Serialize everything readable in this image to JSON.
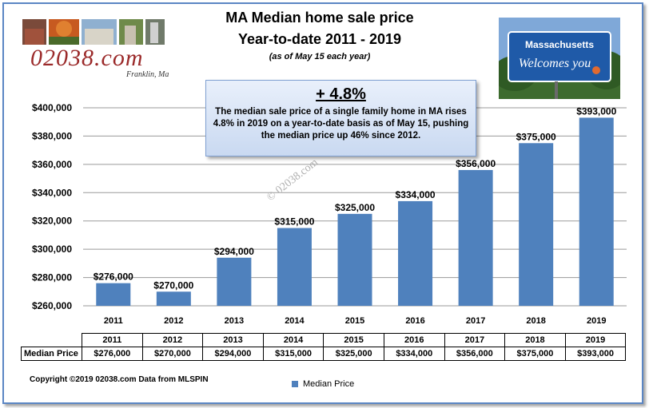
{
  "header": {
    "title_line1": "MA Median home sale price",
    "title_line2": "Year-to-date  2011 - 2019",
    "subtitle": "(as of May 15 each year)"
  },
  "brand": {
    "name": "02038.com",
    "tagline": "Franklin, Ma"
  },
  "sign": {
    "line1": "Massachusetts",
    "line2": "Welcomes you"
  },
  "callout": {
    "headline": "+ 4.8%",
    "body": "The median sale price of a single family home in MA rises 4.8% in 2019  on a year-to-date basis as of May 15, pushing the median price up 46% since 2012."
  },
  "watermark": "© 02038.com",
  "chart_data": {
    "type": "bar",
    "categories": [
      "2011",
      "2012",
      "2013",
      "2014",
      "2015",
      "2016",
      "2017",
      "2018",
      "2019"
    ],
    "series": [
      {
        "name": "Median Price",
        "values": [
          276000,
          270000,
          294000,
          315000,
          325000,
          334000,
          356000,
          375000,
          393000
        ],
        "data_labels": [
          "$276,000",
          "$270,000",
          "$294,000",
          "$315,000",
          "$325,000",
          "$334,000",
          "$356,000",
          "$375,000",
          "$393,000"
        ]
      }
    ],
    "ylim": [
      260000,
      400000
    ],
    "yticks": [
      "$260,000",
      "$280,000",
      "$300,000",
      "$320,000",
      "$340,000",
      "$360,000",
      "$380,000",
      "$400,000"
    ],
    "ytick_values": [
      260000,
      280000,
      300000,
      320000,
      340000,
      360000,
      380000,
      400000
    ],
    "grid": true,
    "legend": "bottom",
    "bar_color": "#4f81bd"
  },
  "table": {
    "row_label": "Median Price"
  },
  "footer": {
    "copyright": "Copyright ©2019 02038.com  Data from MLSPIN"
  }
}
